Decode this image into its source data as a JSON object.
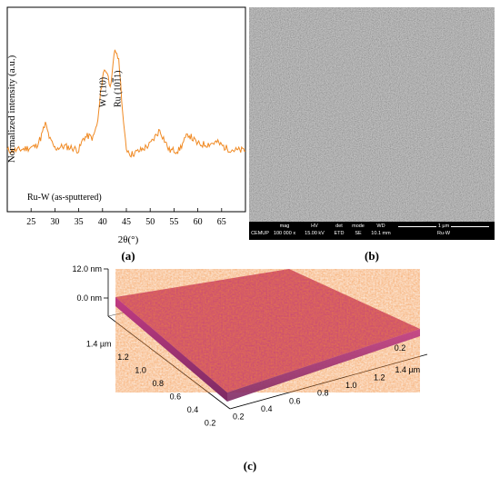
{
  "panels": {
    "a": "(a)",
    "b": "(b)",
    "c": "(c)"
  },
  "chart_data": {
    "type": "line",
    "title": "",
    "xlabel": "2θ(°)",
    "ylabel": "Normalized intensity (a.u.)",
    "xlim": [
      20,
      70
    ],
    "x_ticks": [
      "25",
      "30",
      "35",
      "40",
      "45",
      "50",
      "55",
      "60",
      "65"
    ],
    "annotation_text": "Ru-W (as-sputtered)",
    "peak_labels": [
      {
        "text": "W (110)",
        "x": 40.3
      },
      {
        "text": "Ru (10",
        "text_over": "1",
        "text_end": "1)",
        "x": 43.2
      }
    ],
    "line_color": "#f08a24",
    "series": [
      {
        "x": [
          20,
          22,
          24,
          26,
          27,
          28,
          29,
          30,
          32,
          34,
          35,
          36,
          37,
          38,
          39,
          39.5,
          40,
          40.5,
          41,
          41.5,
          42,
          42.5,
          43,
          43.5,
          44,
          44.5,
          45,
          46,
          47,
          48,
          50,
          52,
          54,
          56,
          58,
          60,
          62,
          64,
          66,
          68,
          70
        ],
        "y": [
          0.3,
          0.3,
          0.31,
          0.32,
          0.36,
          0.43,
          0.35,
          0.31,
          0.32,
          0.31,
          0.3,
          0.36,
          0.37,
          0.36,
          0.44,
          0.56,
          0.66,
          0.7,
          0.68,
          0.62,
          0.66,
          0.78,
          0.78,
          0.72,
          0.56,
          0.4,
          0.31,
          0.28,
          0.29,
          0.3,
          0.33,
          0.4,
          0.3,
          0.3,
          0.38,
          0.33,
          0.33,
          0.34,
          0.31,
          0.3,
          0.3
        ]
      }
    ]
  },
  "sem": {
    "labels": [
      "",
      "mag",
      "HV",
      "det",
      "mode",
      "WD",
      "1 µm"
    ],
    "values": [
      "CEMUP",
      "100 000 x",
      "15.00 kV",
      "ETD",
      "SE",
      "10.1 mm",
      "Ru-W"
    ]
  },
  "afm": {
    "z_top": "12.0 nm",
    "z_bottom": "0.0 nm",
    "left_axis_ticks": [
      "1.4 µm",
      "1.2",
      "1.0",
      "0.8",
      "0.6",
      "0.4",
      "0.2"
    ],
    "bottom_axis_ticks": [
      "0.2",
      "0.4",
      "0.6",
      "0.8",
      "1.0",
      "1.2",
      "1.4 µm"
    ],
    "right_axis_ticks": [
      "0.2"
    ],
    "color_low": "#c13b82",
    "color_high": "#f28c3a"
  }
}
